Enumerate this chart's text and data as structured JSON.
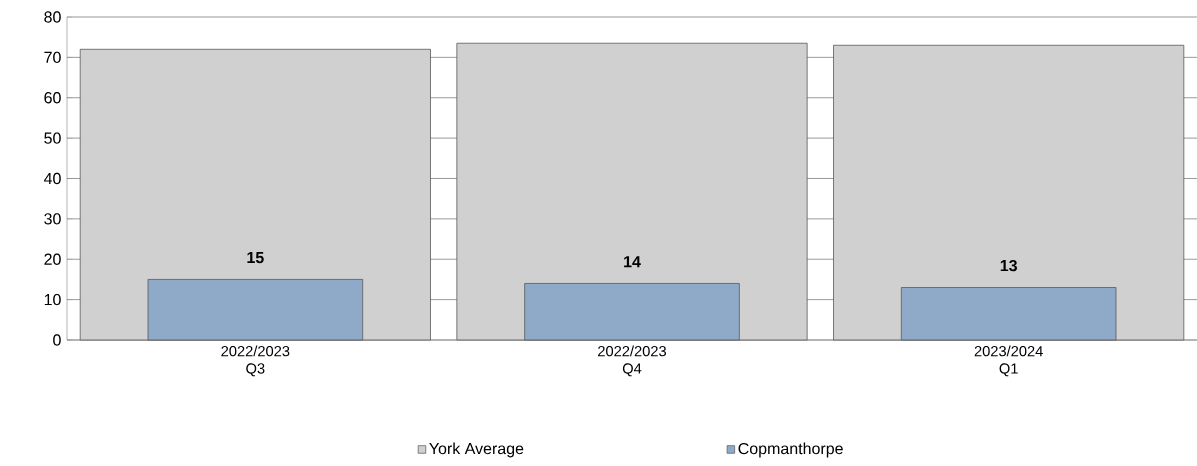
{
  "chart_data": {
    "type": "bar",
    "categories": [
      "2022/2023 Q3",
      "2022/2023 Q4",
      "2023/2024 Q1"
    ],
    "series": [
      {
        "name": "York Average",
        "color": "#d0d0d0",
        "values": [
          72,
          73.5,
          73
        ]
      },
      {
        "name": "Copmanthorpe",
        "color": "#8faac8",
        "values": [
          15,
          14,
          13
        ],
        "value_labels": [
          "15",
          "14",
          "13"
        ]
      }
    ],
    "ylim": [
      0,
      80
    ],
    "yticks": [
      0,
      10,
      20,
      30,
      40,
      50,
      60,
      70,
      80
    ],
    "grid": "y",
    "legend": "bottom"
  }
}
